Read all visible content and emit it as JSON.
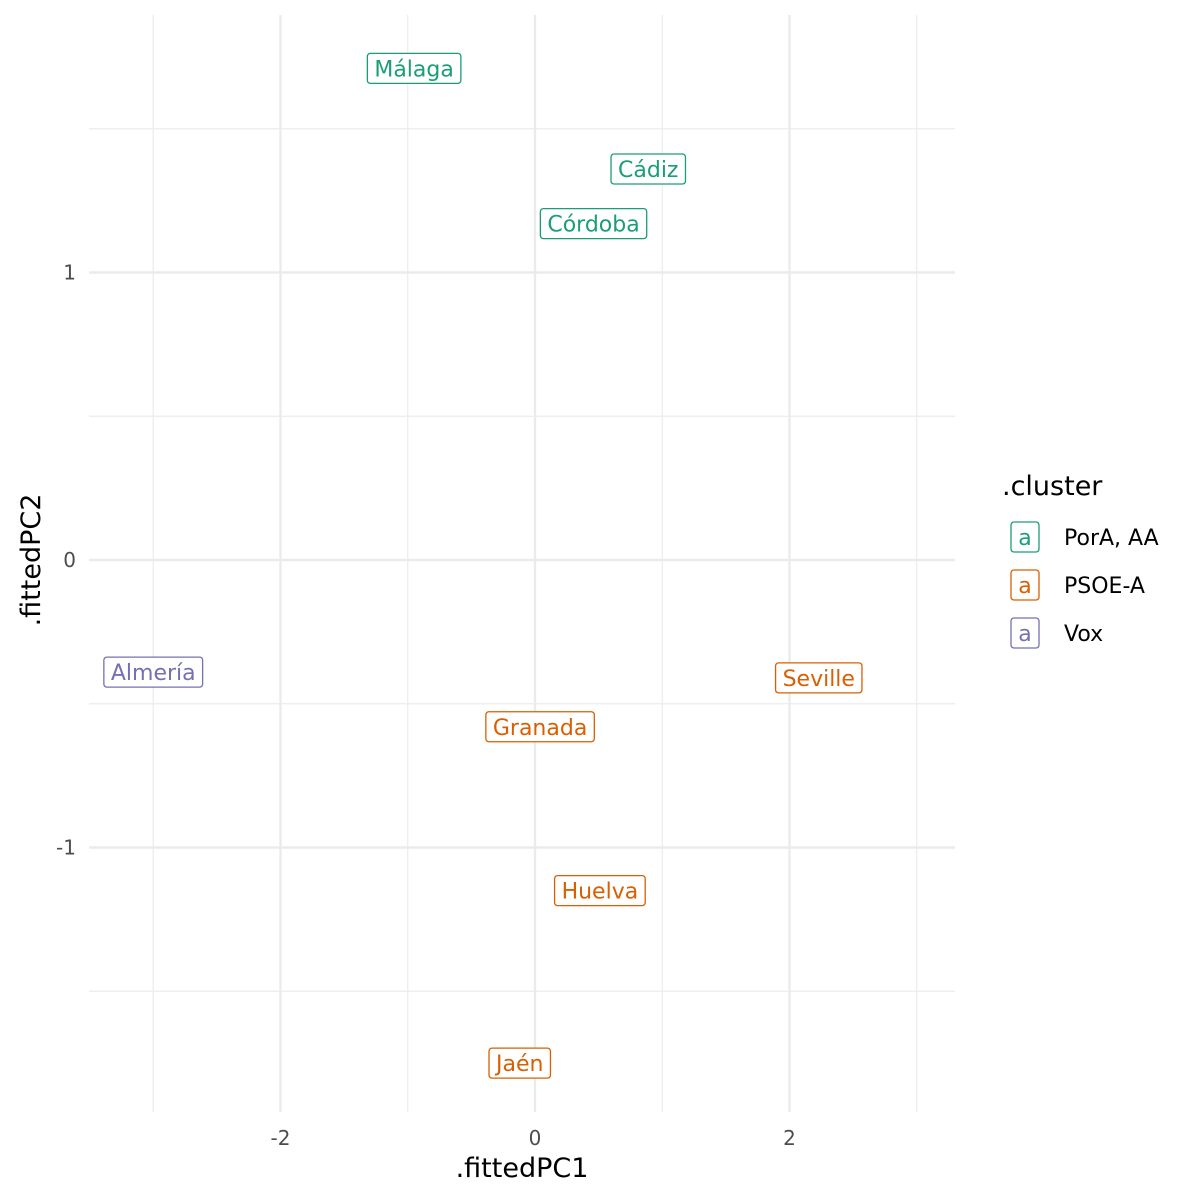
{
  "chart_data": {
    "type": "scatter",
    "xlabel": ".fittedPC1",
    "ylabel": ".fittedPC2",
    "xlim": [
      -3.4,
      3.3
    ],
    "ylim": [
      -1.9,
      1.95
    ],
    "x_ticks": [
      -2,
      0,
      2
    ],
    "y_ticks": [
      -1,
      0,
      1
    ],
    "grid": true,
    "legend": {
      "title": ".cluster",
      "position": "right",
      "key_glyph": "a"
    },
    "series": [
      {
        "name": "PorA, AA",
        "color": "#1b9e77",
        "points": [
          {
            "label": "Málaga",
            "x": -0.95,
            "y": 1.71
          },
          {
            "label": "Cádiz",
            "x": 0.89,
            "y": 1.36
          },
          {
            "label": "Córdoba",
            "x": 0.46,
            "y": 1.17
          }
        ]
      },
      {
        "name": "PSOE-A",
        "color": "#d95f02",
        "points": [
          {
            "label": "Seville",
            "x": 2.23,
            "y": -0.41
          },
          {
            "label": "Granada",
            "x": 0.04,
            "y": -0.58
          },
          {
            "label": "Huelva",
            "x": 0.51,
            "y": -1.15
          },
          {
            "label": "Jaén",
            "x": -0.12,
            "y": -1.75
          }
        ]
      },
      {
        "name": "Vox",
        "color": "#7570b3",
        "points": [
          {
            "label": "Almería",
            "x": -3.0,
            "y": -0.39
          }
        ]
      }
    ]
  }
}
